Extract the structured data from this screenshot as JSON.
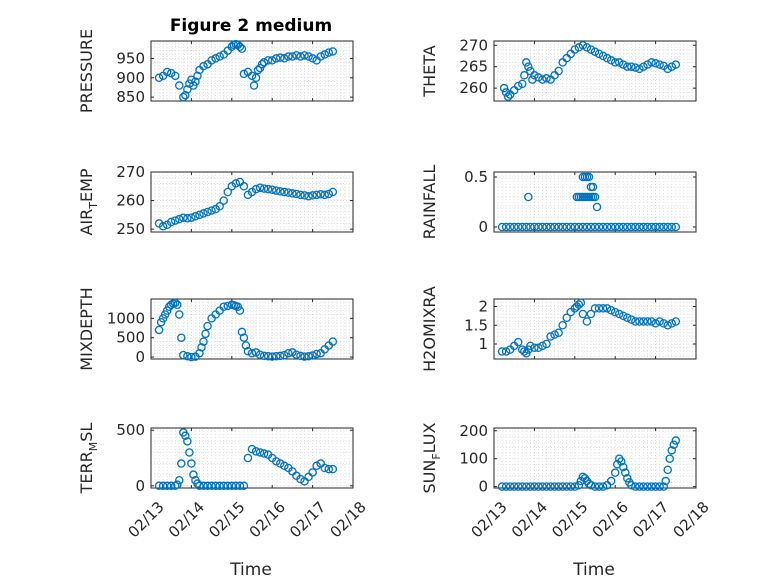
{
  "figure": {
    "title": "Figure 2 medium",
    "xlabel": "Time",
    "x_tick_labels": [
      "02/13",
      "02/14",
      "02/15",
      "02/16",
      "02/17",
      "02/18"
    ],
    "marker_color": "#0072BD"
  },
  "chart_data": [
    {
      "type": "scatter",
      "ylabel": "PRESSURE",
      "xlim": [
        0,
        5
      ],
      "ylim": [
        840,
        995
      ],
      "yticks": [
        850,
        900,
        950
      ],
      "series": [
        {
          "x": [
            0.2,
            0.3,
            0.4,
            0.5,
            0.6,
            0.7,
            0.8,
            0.85,
            0.9,
            0.95,
            1.0,
            1.05,
            1.1,
            1.15,
            1.2,
            1.3,
            1.4,
            1.5,
            1.6,
            1.7,
            1.8,
            1.9,
            2.0,
            2.05,
            2.1,
            2.15,
            2.2,
            2.25,
            2.3,
            2.4,
            2.5,
            2.55,
            2.6,
            2.65,
            2.7,
            2.75,
            2.8,
            2.9,
            3.0,
            3.1,
            3.2,
            3.3,
            3.4,
            3.5,
            3.6,
            3.7,
            3.8,
            3.9,
            4.0,
            4.1,
            4.2,
            4.3,
            4.4,
            4.5
          ],
          "y": [
            900,
            905,
            915,
            912,
            905,
            880,
            850,
            855,
            870,
            885,
            895,
            880,
            890,
            905,
            920,
            930,
            935,
            945,
            950,
            955,
            960,
            970,
            980,
            985,
            987,
            985,
            980,
            975,
            910,
            915,
            905,
            880,
            900,
            920,
            925,
            935,
            940,
            945,
            945,
            950,
            952,
            950,
            955,
            955,
            958,
            955,
            958,
            955,
            950,
            945,
            955,
            960,
            965,
            968
          ]
        }
      ]
    },
    {
      "type": "scatter",
      "ylabel": "THETA",
      "xlim": [
        0,
        5
      ],
      "ylim": [
        257,
        271
      ],
      "yticks": [
        260,
        265,
        270
      ],
      "series": [
        {
          "x": [
            0.25,
            0.3,
            0.35,
            0.4,
            0.5,
            0.6,
            0.7,
            0.75,
            0.8,
            0.85,
            0.9,
            0.95,
            1.0,
            1.1,
            1.2,
            1.3,
            1.4,
            1.5,
            1.6,
            1.7,
            1.8,
            1.9,
            2.0,
            2.1,
            2.2,
            2.3,
            2.4,
            2.5,
            2.6,
            2.7,
            2.8,
            2.9,
            3.0,
            3.1,
            3.2,
            3.3,
            3.4,
            3.5,
            3.6,
            3.7,
            3.8,
            3.9,
            4.0,
            4.1,
            4.2,
            4.3,
            4.4,
            4.5
          ],
          "y": [
            260,
            259,
            258,
            258.5,
            259.5,
            260.5,
            261,
            263,
            266,
            265,
            264,
            262,
            263,
            262.5,
            262,
            262.3,
            262,
            263,
            264,
            266,
            267,
            268,
            269,
            269.5,
            270,
            269.5,
            269,
            268.5,
            268,
            267.5,
            267,
            266.5,
            266,
            266,
            265.5,
            265,
            265,
            264.8,
            264.5,
            265,
            265.5,
            266,
            265.8,
            265.5,
            265.2,
            264.5,
            265,
            265.5
          ]
        }
      ]
    },
    {
      "type": "scatter",
      "ylabel": "AIR_TEMP",
      "ylabel_main": "AIR",
      "ylabel_sub": "T",
      "ylabel_rest": "EMP",
      "xlim": [
        0,
        5
      ],
      "ylim": [
        249,
        270
      ],
      "yticks": [
        250,
        260,
        270
      ],
      "series": [
        {
          "x": [
            0.2,
            0.3,
            0.4,
            0.5,
            0.6,
            0.7,
            0.8,
            0.9,
            1.0,
            1.1,
            1.2,
            1.3,
            1.4,
            1.5,
            1.6,
            1.7,
            1.8,
            1.9,
            2.0,
            2.1,
            2.2,
            2.3,
            2.4,
            2.5,
            2.6,
            2.7,
            2.8,
            2.9,
            3.0,
            3.1,
            3.2,
            3.3,
            3.4,
            3.5,
            3.6,
            3.7,
            3.8,
            3.9,
            4.0,
            4.1,
            4.2,
            4.3,
            4.4,
            4.5
          ],
          "y": [
            252,
            251,
            251.5,
            252.5,
            253,
            253.5,
            254,
            253.8,
            254,
            254.5,
            255,
            255.5,
            256,
            256.5,
            257,
            258,
            260,
            263,
            265,
            266,
            266.5,
            265,
            262,
            263,
            264,
            264.5,
            264.2,
            264,
            263.8,
            263.5,
            263.2,
            263,
            262.8,
            262.5,
            262.3,
            262,
            261.8,
            261.5,
            261.8,
            262,
            262.2,
            262,
            262.3,
            263
          ]
        }
      ]
    },
    {
      "type": "scatter",
      "ylabel": "RAINFALL",
      "xlim": [
        0,
        5
      ],
      "ylim": [
        -0.05,
        0.55
      ],
      "yticks": [
        0,
        0.5
      ],
      "ytick_labels": [
        "0",
        "0.5"
      ],
      "series": [
        {
          "x": [
            0.2,
            0.3,
            0.4,
            0.5,
            0.6,
            0.7,
            0.8,
            0.9,
            1.0,
            1.1,
            1.2,
            1.3,
            1.4,
            1.5,
            1.6,
            1.7,
            1.8,
            1.9,
            2.0,
            2.1,
            2.2,
            2.3,
            2.4,
            2.5,
            2.6,
            2.7,
            2.8,
            2.9,
            3.0,
            3.1,
            3.2,
            3.3,
            3.4,
            3.5,
            3.6,
            3.7,
            3.8,
            3.9,
            4.0,
            4.1,
            4.2,
            4.3,
            4.4,
            4.5,
            0.85,
            2.05,
            2.1,
            2.15,
            2.2,
            2.25,
            2.3,
            2.35,
            2.4,
            2.45,
            2.5,
            2.2,
            2.25,
            2.3,
            2.35,
            2.4,
            2.45,
            2.55
          ],
          "y": [
            0,
            0,
            0,
            0,
            0,
            0,
            0,
            0,
            0,
            0,
            0,
            0,
            0,
            0,
            0,
            0,
            0,
            0,
            0,
            0,
            0,
            0,
            0,
            0,
            0,
            0,
            0,
            0,
            0,
            0,
            0,
            0,
            0,
            0,
            0,
            0,
            0,
            0,
            0,
            0,
            0,
            0,
            0,
            0,
            0.3,
            0.3,
            0.3,
            0.3,
            0.3,
            0.3,
            0.3,
            0.3,
            0.3,
            0.3,
            0.3,
            0.5,
            0.5,
            0.5,
            0.5,
            0.4,
            0.4,
            0.2
          ]
        }
      ]
    },
    {
      "type": "scatter",
      "ylabel": "MIXDEPTH",
      "xlim": [
        0,
        5
      ],
      "ylim": [
        -50,
        1500
      ],
      "yticks": [
        0,
        500,
        1000
      ],
      "series": [
        {
          "x": [
            0.2,
            0.25,
            0.3,
            0.35,
            0.4,
            0.45,
            0.5,
            0.55,
            0.6,
            0.65,
            0.7,
            0.75,
            0.8,
            0.9,
            1.0,
            1.1,
            1.2,
            1.25,
            1.3,
            1.35,
            1.4,
            1.5,
            1.6,
            1.7,
            1.8,
            1.9,
            2.0,
            2.05,
            2.1,
            2.15,
            2.2,
            2.25,
            2.3,
            2.35,
            2.4,
            2.5,
            2.6,
            2.7,
            2.8,
            2.9,
            3.0,
            3.1,
            3.2,
            3.3,
            3.4,
            3.5,
            3.6,
            3.7,
            3.8,
            3.9,
            4.0,
            4.1,
            4.2,
            4.3,
            4.4,
            4.5
          ],
          "y": [
            700,
            900,
            1000,
            1100,
            1200,
            1300,
            1350,
            1380,
            1400,
            1350,
            1100,
            500,
            50,
            20,
            0,
            10,
            100,
            250,
            400,
            600,
            800,
            1000,
            1100,
            1200,
            1300,
            1320,
            1350,
            1340,
            1320,
            1300,
            1200,
            650,
            500,
            300,
            150,
            100,
            120,
            60,
            30,
            20,
            10,
            20,
            30,
            50,
            100,
            120,
            60,
            30,
            10,
            20,
            40,
            80,
            100,
            200,
            300,
            400
          ]
        }
      ]
    },
    {
      "type": "scatter",
      "ylabel": "H2OMIXRA",
      "xlim": [
        0,
        5
      ],
      "ylim": [
        0.6,
        2.2
      ],
      "yticks": [
        1,
        1.5,
        2
      ],
      "ytick_labels": [
        "1",
        "1.5",
        "2"
      ],
      "series": [
        {
          "x": [
            0.2,
            0.3,
            0.4,
            0.5,
            0.6,
            0.7,
            0.75,
            0.8,
            0.85,
            0.9,
            1.0,
            1.1,
            1.2,
            1.3,
            1.4,
            1.5,
            1.6,
            1.7,
            1.8,
            1.9,
            2.0,
            2.05,
            2.1,
            2.15,
            2.2,
            2.3,
            2.4,
            2.5,
            2.6,
            2.7,
            2.8,
            2.9,
            3.0,
            3.1,
            3.2,
            3.3,
            3.4,
            3.5,
            3.6,
            3.7,
            3.8,
            3.9,
            4.0,
            4.1,
            4.2,
            4.3,
            4.4,
            4.5
          ],
          "y": [
            0.8,
            0.8,
            0.85,
            0.95,
            1.05,
            0.85,
            0.8,
            0.75,
            0.85,
            0.95,
            0.9,
            0.9,
            0.95,
            1.0,
            1.2,
            1.25,
            1.3,
            1.5,
            1.7,
            1.85,
            1.95,
            2.0,
            2.05,
            2.1,
            1.8,
            1.6,
            1.8,
            1.95,
            1.95,
            1.95,
            1.95,
            1.9,
            1.85,
            1.8,
            1.75,
            1.7,
            1.65,
            1.6,
            1.6,
            1.6,
            1.6,
            1.6,
            1.55,
            1.6,
            1.55,
            1.5,
            1.55,
            1.6
          ]
        }
      ]
    },
    {
      "type": "scatter",
      "ylabel": "TERR_MSL",
      "ylabel_main": "TERR",
      "ylabel_sub": "M",
      "ylabel_rest": "SL",
      "xlim": [
        0,
        5
      ],
      "ylim": [
        -20,
        520
      ],
      "yticks": [
        0,
        500
      ],
      "series": [
        {
          "x": [
            0.2,
            0.3,
            0.4,
            0.5,
            0.6,
            0.65,
            0.7,
            0.75,
            0.8,
            0.85,
            0.9,
            0.95,
            1.0,
            1.05,
            1.1,
            1.15,
            1.2,
            1.3,
            1.4,
            1.5,
            1.6,
            1.7,
            1.8,
            1.9,
            2.0,
            2.1,
            2.2,
            2.3,
            2.4,
            2.5,
            2.6,
            2.7,
            2.8,
            2.9,
            3.0,
            3.1,
            3.2,
            3.3,
            3.4,
            3.5,
            3.6,
            3.7,
            3.8,
            3.9,
            4.0,
            4.1,
            4.2,
            4.3,
            4.4,
            4.5
          ],
          "y": [
            0,
            0,
            0,
            0,
            0,
            10,
            50,
            200,
            480,
            450,
            400,
            300,
            200,
            100,
            50,
            20,
            0,
            0,
            0,
            0,
            0,
            0,
            0,
            0,
            0,
            0,
            0,
            0,
            250,
            330,
            310,
            300,
            290,
            280,
            250,
            220,
            200,
            180,
            160,
            130,
            90,
            60,
            40,
            80,
            120,
            180,
            200,
            160,
            150,
            150
          ]
        }
      ]
    },
    {
      "type": "scatter",
      "ylabel": "SUN_FLUX",
      "ylabel_main": "SUN",
      "ylabel_sub": "F",
      "ylabel_rest": "LUX",
      "xlim": [
        0,
        5
      ],
      "ylim": [
        -5,
        210
      ],
      "yticks": [
        0,
        100,
        200
      ],
      "series": [
        {
          "x": [
            0.2,
            0.3,
            0.4,
            0.5,
            0.6,
            0.7,
            0.8,
            0.9,
            1.0,
            1.1,
            1.2,
            1.3,
            1.4,
            1.5,
            1.6,
            1.7,
            1.8,
            1.9,
            2.0,
            2.1,
            2.15,
            2.2,
            2.25,
            2.3,
            2.35,
            2.4,
            2.5,
            2.6,
            2.7,
            2.8,
            2.9,
            3.0,
            3.05,
            3.1,
            3.15,
            3.2,
            3.25,
            3.3,
            3.35,
            3.4,
            3.5,
            3.6,
            3.7,
            3.8,
            3.9,
            4.0,
            4.1,
            4.2,
            4.25,
            4.3,
            4.35,
            4.4,
            4.45,
            4.5
          ],
          "y": [
            0,
            0,
            0,
            0,
            0,
            0,
            0,
            0,
            0,
            0,
            0,
            0,
            0,
            0,
            0,
            0,
            0,
            0,
            0,
            5,
            20,
            35,
            30,
            20,
            10,
            5,
            0,
            0,
            0,
            5,
            20,
            50,
            80,
            100,
            90,
            70,
            50,
            30,
            15,
            5,
            0,
            0,
            0,
            0,
            0,
            0,
            0,
            0,
            20,
            60,
            100,
            130,
            150,
            165
          ]
        }
      ]
    }
  ]
}
